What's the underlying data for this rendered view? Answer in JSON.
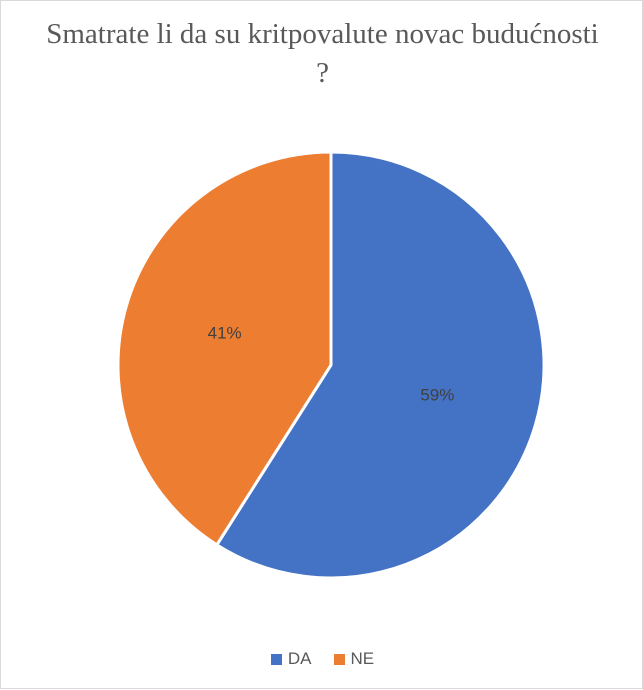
{
  "chart_data": {
    "type": "pie",
    "title": "Smatrate li da su kritpovalute novac budućnosti ?",
    "categories": [
      "DA",
      "NE"
    ],
    "values": [
      59,
      41
    ],
    "labels": [
      "59%",
      "41%"
    ],
    "colors": [
      "#4472c4",
      "#ed7d31"
    ],
    "legend_position": "bottom"
  }
}
